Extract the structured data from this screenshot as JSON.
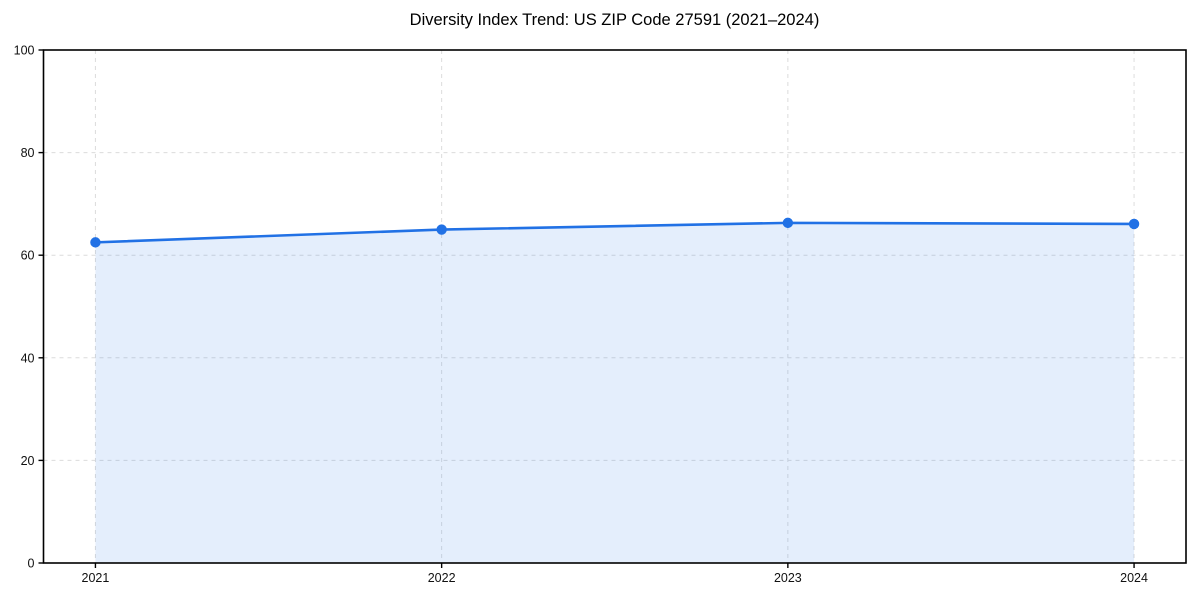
{
  "chart_data": {
    "type": "area",
    "title": "Diversity Index Trend: US ZIP Code 27591 (2021–2024)",
    "categories": [
      "2021",
      "2022",
      "2023",
      "2024"
    ],
    "x": [
      2021,
      2022,
      2023,
      2024
    ],
    "series": [
      {
        "name": "Diversity Index",
        "values": [
          62.5,
          65.0,
          66.3,
          66.1
        ]
      }
    ],
    "xlabel": "",
    "ylabel": "",
    "xlim": [
      2020.85,
      2024.15
    ],
    "ylim": [
      0,
      100
    ],
    "yticks": [
      0,
      20,
      40,
      60,
      80,
      100
    ],
    "xticks": [
      2021,
      2022,
      2023,
      2024
    ],
    "grid": true,
    "grid_style": "dashed",
    "legend": "none",
    "marker": "circle",
    "colors": {
      "line": "#2171e5",
      "fill": "#2171e5",
      "fill_opacity": 0.12,
      "grid": "#dcdcdc",
      "spine": "#000000",
      "tick_text": "#111111",
      "background": "#ffffff"
    }
  }
}
